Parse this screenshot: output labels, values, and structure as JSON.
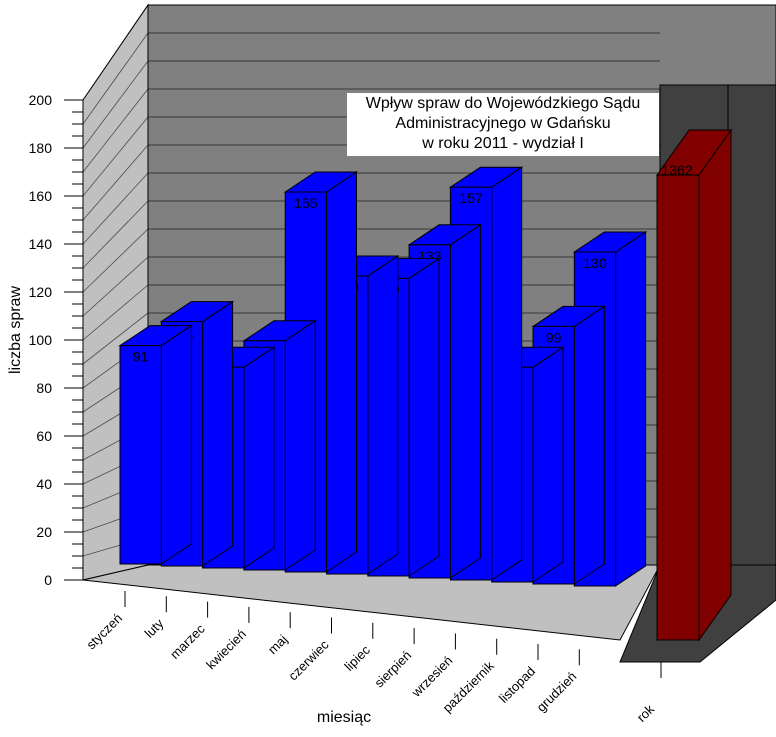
{
  "chart_data": {
    "type": "bar",
    "title_lines": [
      "Wpływ spraw do Wojewódzkiego Sądu",
      "Administracyjnego w Gdańsku",
      "w roku 2011 - wydział I"
    ],
    "xlabel": "miesiąc",
    "ylabel": "liczba spraw",
    "ylim": [
      0,
      200
    ],
    "yticks": [
      "0",
      "20",
      "40",
      "60",
      "80",
      "100",
      "120",
      "140",
      "160",
      "180",
      "200"
    ],
    "categories": [
      "styczeń",
      "luty",
      "marzec",
      "kwiecień",
      "maj",
      "czerwiec",
      "lipiec",
      "sierpień",
      "wrzesień",
      "październik",
      "listopad",
      "grudzień"
    ],
    "values": [
      91,
      101,
      82,
      93,
      155,
      120,
      119,
      133,
      157,
      82,
      99,
      130
    ],
    "series_color": "#0000ff",
    "summary": {
      "category": "rok",
      "value": 1362,
      "color": "#800000",
      "note": "bar drawn truncated at top of scale"
    },
    "grid": true,
    "style": "3d"
  }
}
